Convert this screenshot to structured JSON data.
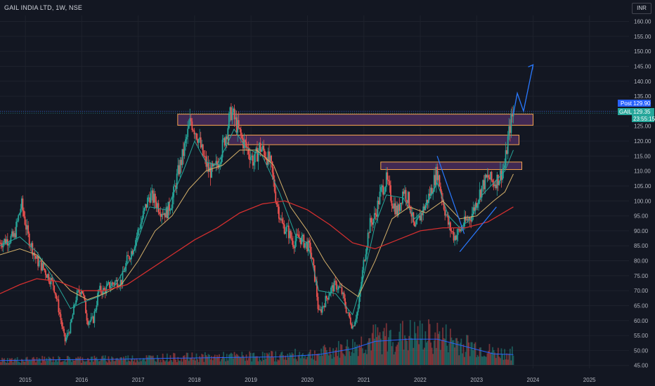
{
  "header": {
    "symbol_title": "GAIL INDIA LTD, 1W, NSE",
    "currency": "INR"
  },
  "price_tags": {
    "post": {
      "label": "Post",
      "value": "129.90",
      "color": "#2962ff"
    },
    "last": {
      "label": "GAIL",
      "value": "129.35",
      "countdown": "23:55:15",
      "color": "#26a69a"
    }
  },
  "colors": {
    "up": "#26a69a",
    "down": "#ef5350",
    "ma_fast": "#26a69a",
    "ma_mid": "#d4b06a",
    "ma_slow": "#d32f2f",
    "volume_ma": "#2962ff",
    "zone_fill": "#4a2d5c",
    "zone_border": "#f7a34f",
    "drawing": "#2979ff",
    "grid": "#1e222d"
  },
  "chart_data": {
    "type": "candlestick",
    "title": "GAIL INDIA LTD, 1W, NSE",
    "y_axis": {
      "ticks": [
        "160.00",
        "155.00",
        "150.00",
        "145.00",
        "140.00",
        "135.00",
        "130.00",
        "125.00",
        "120.00",
        "115.00",
        "110.00",
        "105.00",
        "100.00",
        "95.00",
        "90.00",
        "85.00",
        "80.00",
        "75.00",
        "70.00",
        "65.00",
        "60.00",
        "55.00",
        "50.00",
        "45.00"
      ],
      "range": [
        44,
        162
      ]
    },
    "x_axis": {
      "ticks": [
        "2015",
        "2016",
        "2017",
        "2018",
        "2019",
        "2020",
        "2021",
        "2022",
        "2023",
        "2024",
        "2025"
      ],
      "range": [
        2014.55,
        2025.7
      ]
    },
    "price_path": [
      [
        2014.55,
        86
      ],
      [
        2014.8,
        88
      ],
      [
        2014.93,
        99
      ],
      [
        2015.05,
        88
      ],
      [
        2015.2,
        80
      ],
      [
        2015.3,
        78
      ],
      [
        2015.5,
        72
      ],
      [
        2015.6,
        63
      ],
      [
        2015.7,
        53
      ],
      [
        2015.8,
        58
      ],
      [
        2015.9,
        68
      ],
      [
        2016.0,
        71
      ],
      [
        2016.1,
        60
      ],
      [
        2016.2,
        60
      ],
      [
        2016.3,
        70
      ],
      [
        2016.4,
        70
      ],
      [
        2016.5,
        72
      ],
      [
        2016.6,
        73
      ],
      [
        2016.7,
        73
      ],
      [
        2016.8,
        80
      ],
      [
        2016.9,
        84
      ],
      [
        2017.0,
        90
      ],
      [
        2017.1,
        96
      ],
      [
        2017.2,
        102
      ],
      [
        2017.3,
        100
      ],
      [
        2017.4,
        97
      ],
      [
        2017.5,
        96
      ],
      [
        2017.6,
        100
      ],
      [
        2017.7,
        109
      ],
      [
        2017.8,
        116
      ],
      [
        2017.93,
        127
      ],
      [
        2018.05,
        122
      ],
      [
        2018.15,
        115
      ],
      [
        2018.25,
        110
      ],
      [
        2018.35,
        110
      ],
      [
        2018.45,
        115
      ],
      [
        2018.55,
        122
      ],
      [
        2018.65,
        130
      ],
      [
        2018.75,
        125
      ],
      [
        2018.85,
        120
      ],
      [
        2018.95,
        117
      ],
      [
        2019.05,
        113
      ],
      [
        2019.15,
        118
      ],
      [
        2019.25,
        116
      ],
      [
        2019.35,
        112
      ],
      [
        2019.45,
        100
      ],
      [
        2019.55,
        92
      ],
      [
        2019.65,
        90
      ],
      [
        2019.75,
        86
      ],
      [
        2019.85,
        88
      ],
      [
        2019.95,
        86
      ],
      [
        2020.05,
        84
      ],
      [
        2020.15,
        72
      ],
      [
        2020.2,
        62
      ],
      [
        2020.3,
        66
      ],
      [
        2020.4,
        70
      ],
      [
        2020.5,
        72
      ],
      [
        2020.6,
        70
      ],
      [
        2020.7,
        63
      ],
      [
        2020.8,
        58
      ],
      [
        2020.9,
        64
      ],
      [
        2021.0,
        80
      ],
      [
        2021.1,
        92
      ],
      [
        2021.2,
        95
      ],
      [
        2021.3,
        103
      ],
      [
        2021.4,
        107
      ],
      [
        2021.5,
        100
      ],
      [
        2021.6,
        96
      ],
      [
        2021.7,
        104
      ],
      [
        2021.8,
        100
      ],
      [
        2021.9,
        90
      ],
      [
        2022.0,
        95
      ],
      [
        2022.1,
        99
      ],
      [
        2022.2,
        104
      ],
      [
        2022.3,
        110
      ],
      [
        2022.4,
        100
      ],
      [
        2022.5,
        92
      ],
      [
        2022.6,
        88
      ],
      [
        2022.7,
        90
      ],
      [
        2022.8,
        93
      ],
      [
        2022.9,
        95
      ],
      [
        2023.0,
        100
      ],
      [
        2023.1,
        105
      ],
      [
        2023.2,
        108
      ],
      [
        2023.3,
        106
      ],
      [
        2023.4,
        108
      ],
      [
        2023.5,
        112
      ],
      [
        2023.55,
        120
      ],
      [
        2023.6,
        126
      ],
      [
        2023.65,
        129.35
      ]
    ],
    "moving_averages": [
      {
        "name": "fast",
        "points": [
          [
            2014.55,
            85
          ],
          [
            2014.9,
            88
          ],
          [
            2015.2,
            83
          ],
          [
            2015.5,
            74
          ],
          [
            2015.8,
            64
          ],
          [
            2016.0,
            66
          ],
          [
            2016.3,
            68
          ],
          [
            2016.6,
            72
          ],
          [
            2016.9,
            82
          ],
          [
            2017.2,
            98
          ],
          [
            2017.5,
            97
          ],
          [
            2017.8,
            110
          ],
          [
            2018.0,
            120
          ],
          [
            2018.2,
            113
          ],
          [
            2018.4,
            112
          ],
          [
            2018.7,
            124
          ],
          [
            2018.9,
            118
          ],
          [
            2019.2,
            115
          ],
          [
            2019.5,
            103
          ],
          [
            2019.8,
            88
          ],
          [
            2020.0,
            86
          ],
          [
            2020.2,
            70
          ],
          [
            2020.5,
            69
          ],
          [
            2020.8,
            62
          ],
          [
            2021.0,
            75
          ],
          [
            2021.2,
            92
          ],
          [
            2021.4,
            102
          ],
          [
            2021.7,
            101
          ],
          [
            2021.9,
            94
          ],
          [
            2022.1,
            98
          ],
          [
            2022.3,
            106
          ],
          [
            2022.5,
            95
          ],
          [
            2022.7,
            91
          ],
          [
            2022.9,
            94
          ],
          [
            2023.1,
            102
          ],
          [
            2023.3,
            106
          ],
          [
            2023.5,
            110
          ],
          [
            2023.65,
            117
          ]
        ]
      },
      {
        "name": "mid",
        "points": [
          [
            2014.55,
            82
          ],
          [
            2014.9,
            84
          ],
          [
            2015.2,
            82
          ],
          [
            2015.5,
            76
          ],
          [
            2015.8,
            70
          ],
          [
            2016.1,
            67
          ],
          [
            2016.4,
            69
          ],
          [
            2016.7,
            72
          ],
          [
            2017.0,
            80
          ],
          [
            2017.3,
            90
          ],
          [
            2017.6,
            95
          ],
          [
            2017.9,
            104
          ],
          [
            2018.2,
            110
          ],
          [
            2018.5,
            112
          ],
          [
            2018.8,
            117
          ],
          [
            2019.1,
            117
          ],
          [
            2019.4,
            112
          ],
          [
            2019.7,
            98
          ],
          [
            2020.0,
            90
          ],
          [
            2020.3,
            80
          ],
          [
            2020.6,
            72
          ],
          [
            2020.9,
            68
          ],
          [
            2021.2,
            80
          ],
          [
            2021.5,
            94
          ],
          [
            2021.8,
            98
          ],
          [
            2022.1,
            96
          ],
          [
            2022.4,
            100
          ],
          [
            2022.7,
            94
          ],
          [
            2023.0,
            95
          ],
          [
            2023.3,
            100
          ],
          [
            2023.5,
            103
          ],
          [
            2023.65,
            109
          ]
        ]
      },
      {
        "name": "slow",
        "points": [
          [
            2014.55,
            69
          ],
          [
            2014.9,
            72
          ],
          [
            2015.2,
            74
          ],
          [
            2015.6,
            73
          ],
          [
            2016.0,
            70
          ],
          [
            2016.4,
            70
          ],
          [
            2016.8,
            72
          ],
          [
            2017.2,
            77
          ],
          [
            2017.6,
            82
          ],
          [
            2018.0,
            87
          ],
          [
            2018.4,
            91
          ],
          [
            2018.8,
            96
          ],
          [
            2019.2,
            99
          ],
          [
            2019.6,
            100
          ],
          [
            2020.0,
            97
          ],
          [
            2020.4,
            92
          ],
          [
            2020.8,
            86
          ],
          [
            2021.2,
            84
          ],
          [
            2021.6,
            87
          ],
          [
            2022.0,
            90
          ],
          [
            2022.4,
            91
          ],
          [
            2022.8,
            91
          ],
          [
            2023.2,
            93
          ],
          [
            2023.65,
            98
          ]
        ]
      }
    ],
    "resistance_zones": [
      {
        "x": [
          2017.7,
          2024.0
        ],
        "y": [
          125.3,
          129.0
        ]
      },
      {
        "x": [
          2018.6,
          2023.75
        ],
        "y": [
          118.8,
          122.0
        ]
      },
      {
        "x": [
          2021.3,
          2023.8
        ],
        "y": [
          110.5,
          113.0
        ]
      }
    ],
    "drawings": {
      "projection_arrow": [
        [
          2023.65,
          129
        ],
        [
          2023.72,
          136
        ],
        [
          2023.83,
          130
        ],
        [
          2024.0,
          145.5
        ]
      ],
      "down_trendline": [
        [
          2022.3,
          115
        ],
        [
          2022.78,
          89
        ]
      ],
      "up_trendline": [
        [
          2022.7,
          83
        ],
        [
          2023.35,
          98
        ]
      ]
    },
    "volume": {
      "ma_level_points": [
        [
          2014.55,
          0.06
        ],
        [
          2015.5,
          0.07
        ],
        [
          2016.5,
          0.075
        ],
        [
          2017.5,
          0.09
        ],
        [
          2018.5,
          0.1
        ],
        [
          2019.5,
          0.11
        ],
        [
          2020.2,
          0.14
        ],
        [
          2020.8,
          0.22
        ],
        [
          2021.2,
          0.32
        ],
        [
          2021.8,
          0.35
        ],
        [
          2022.3,
          0.35
        ],
        [
          2022.8,
          0.25
        ],
        [
          2023.3,
          0.15
        ],
        [
          2023.65,
          0.14
        ]
      ]
    }
  }
}
